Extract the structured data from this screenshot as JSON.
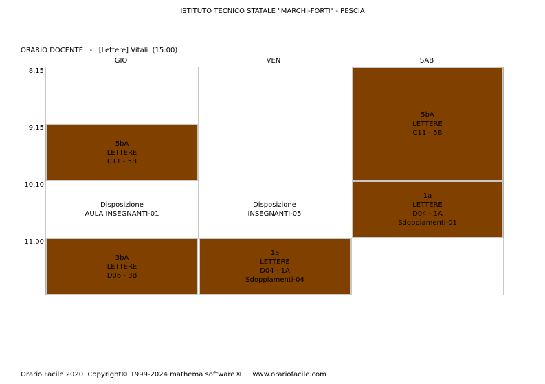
{
  "school_title": "ISTITUTO TECNICO STATALE \"MARCHI-FORTI\" - PESCIA",
  "header": {
    "label": "ORARIO DOCENTE",
    "separator": "-",
    "teacher": "[Lettere] Vitali",
    "hours": "(15:00)"
  },
  "days": [
    "GIO",
    "VEN",
    "SAB"
  ],
  "times": [
    "8.15",
    "9.15",
    "10.10",
    "11.00"
  ],
  "lessons": {
    "gio_0915": {
      "class": "5bA",
      "subject": "LETTERE",
      "room": "C11 - 5B"
    },
    "gio_1010": {
      "line1": "Disposizione",
      "line2": "AULA INSEGNANTI-01"
    },
    "gio_1100": {
      "class": "3bA",
      "subject": "LETTERE",
      "room": "D06 - 3B"
    },
    "ven_1010": {
      "line1": "Disposizione",
      "line2": "INSEGNANTI-05"
    },
    "ven_1100": {
      "class": "1a",
      "subject": "LETTERE",
      "room": "D04 - 1A",
      "note": "Sdoppiamenti-04"
    },
    "sab_0815": {
      "class": "5bA",
      "subject": "LETTERE",
      "room": "C11 - 5B"
    },
    "sab_1010": {
      "class": "1a",
      "subject": "LETTERE",
      "room": "D04 - 1A",
      "note": "Sdoppiamenti-01"
    }
  },
  "colors": {
    "filled": "#804000",
    "border": "#c8c8c8"
  },
  "footer": {
    "product": "Orario Facile 2020",
    "copyright": "Copyright© 1999-2024 mathema software®",
    "website": "www.orariofacile.com"
  }
}
